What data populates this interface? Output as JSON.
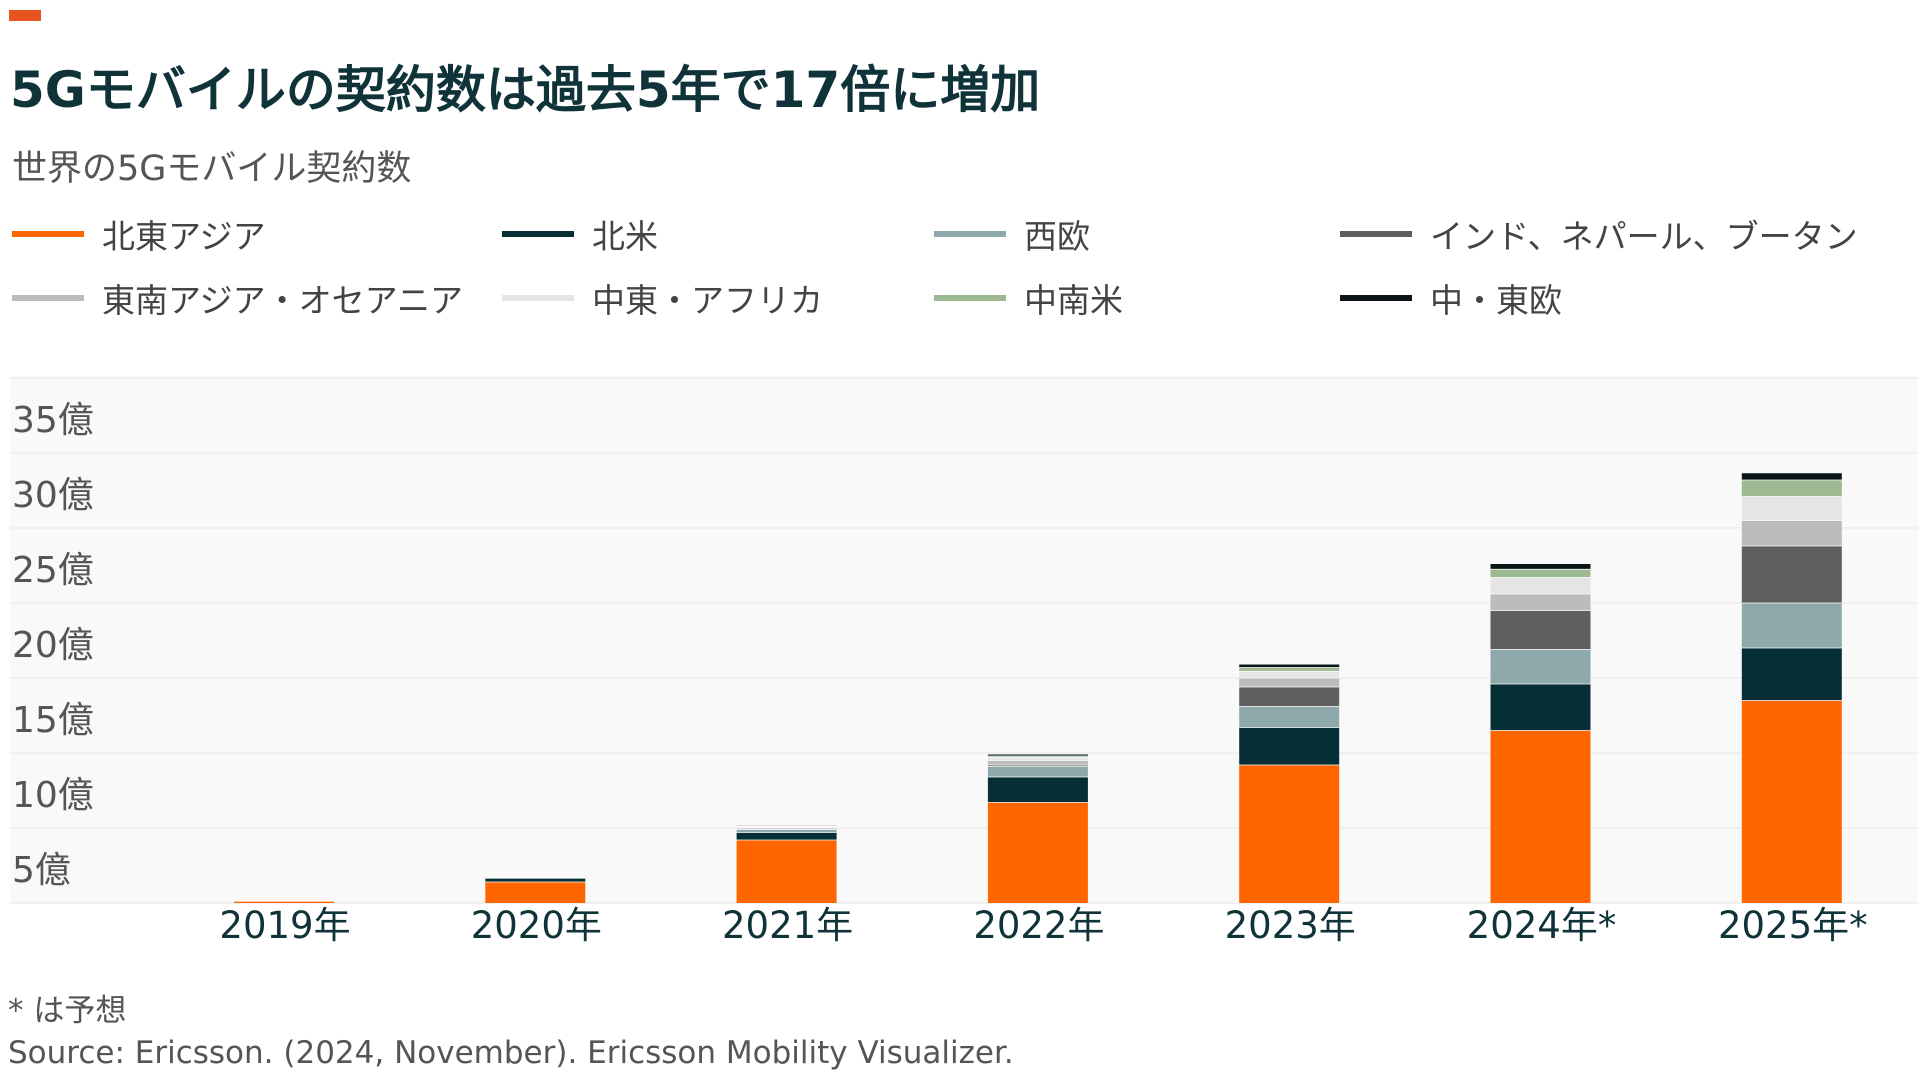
{
  "header": {
    "title": "5Gモバイルの契約数は過去5年で17倍に増加",
    "subtitle": "世界の5Gモバイル契約数",
    "accent_color": "#e8541e"
  },
  "legend": {
    "items": [
      {
        "label": "北東アジア",
        "color": "#ff6600"
      },
      {
        "label": "北米",
        "color": "#062f35"
      },
      {
        "label": "西欧",
        "color": "#8ea9ab"
      },
      {
        "label": "インド、ネパール、ブータン",
        "color": "#5f5f5f"
      },
      {
        "label": "東南アジア・オセアニア",
        "color": "#bcbcbc"
      },
      {
        "label": "中東・アフリカ",
        "color": "#e5e5e5"
      },
      {
        "label": "中南米",
        "color": "#9cb992"
      },
      {
        "label": "中・東欧",
        "color": "#0b1518"
      }
    ]
  },
  "chart_data": {
    "type": "bar",
    "stacked": true,
    "title": "5Gモバイルの契約数は過去5年で17倍に増加",
    "subtitle": "世界の5Gモバイル契約数",
    "categories": [
      "2019年",
      "2020年",
      "2021年",
      "2022年",
      "2023年",
      "2024年*",
      "2025年*"
    ],
    "ylim": [
      0,
      35
    ],
    "y_unit": "億",
    "y_ticks": [
      {
        "value": 5,
        "label": "5億"
      },
      {
        "value": 10,
        "label": "10億"
      },
      {
        "value": 15,
        "label": "15億"
      },
      {
        "value": 20,
        "label": "20億"
      },
      {
        "value": 25,
        "label": "25億"
      },
      {
        "value": 30,
        "label": "30億"
      },
      {
        "value": 35,
        "label": "35億"
      }
    ],
    "grid": true,
    "legend_position": "top",
    "series": [
      {
        "name": "北東アジア",
        "values": [
          0.12,
          1.4,
          4.2,
          6.7,
          9.2,
          11.5,
          13.5
        ]
      },
      {
        "name": "北米",
        "values": [
          0.03,
          0.25,
          0.5,
          1.7,
          2.5,
          3.1,
          3.5
        ]
      },
      {
        "name": "西欧",
        "values": [
          0.01,
          0.05,
          0.2,
          0.7,
          1.4,
          2.3,
          3.0
        ]
      },
      {
        "name": "インド、ネパール、ブータン",
        "values": [
          0.0,
          0.0,
          0.0,
          0.1,
          1.3,
          2.6,
          3.8
        ]
      },
      {
        "name": "東南アジア・オセアニア",
        "values": [
          0.0,
          0.02,
          0.1,
          0.3,
          0.6,
          1.1,
          1.7
        ]
      },
      {
        "name": "中東・アフリカ",
        "values": [
          0.0,
          0.02,
          0.08,
          0.2,
          0.45,
          1.1,
          1.6
        ]
      },
      {
        "name": "中南米",
        "values": [
          0.0,
          0.0,
          0.04,
          0.1,
          0.25,
          0.55,
          1.1
        ]
      },
      {
        "name": "中・東欧",
        "values": [
          0.0,
          0.01,
          0.03,
          0.1,
          0.2,
          0.35,
          0.45
        ]
      }
    ]
  },
  "footer": {
    "footnote": "* は予想",
    "source": "Source: Ericsson. (2024, November). Ericsson Mobility Visualizer."
  }
}
